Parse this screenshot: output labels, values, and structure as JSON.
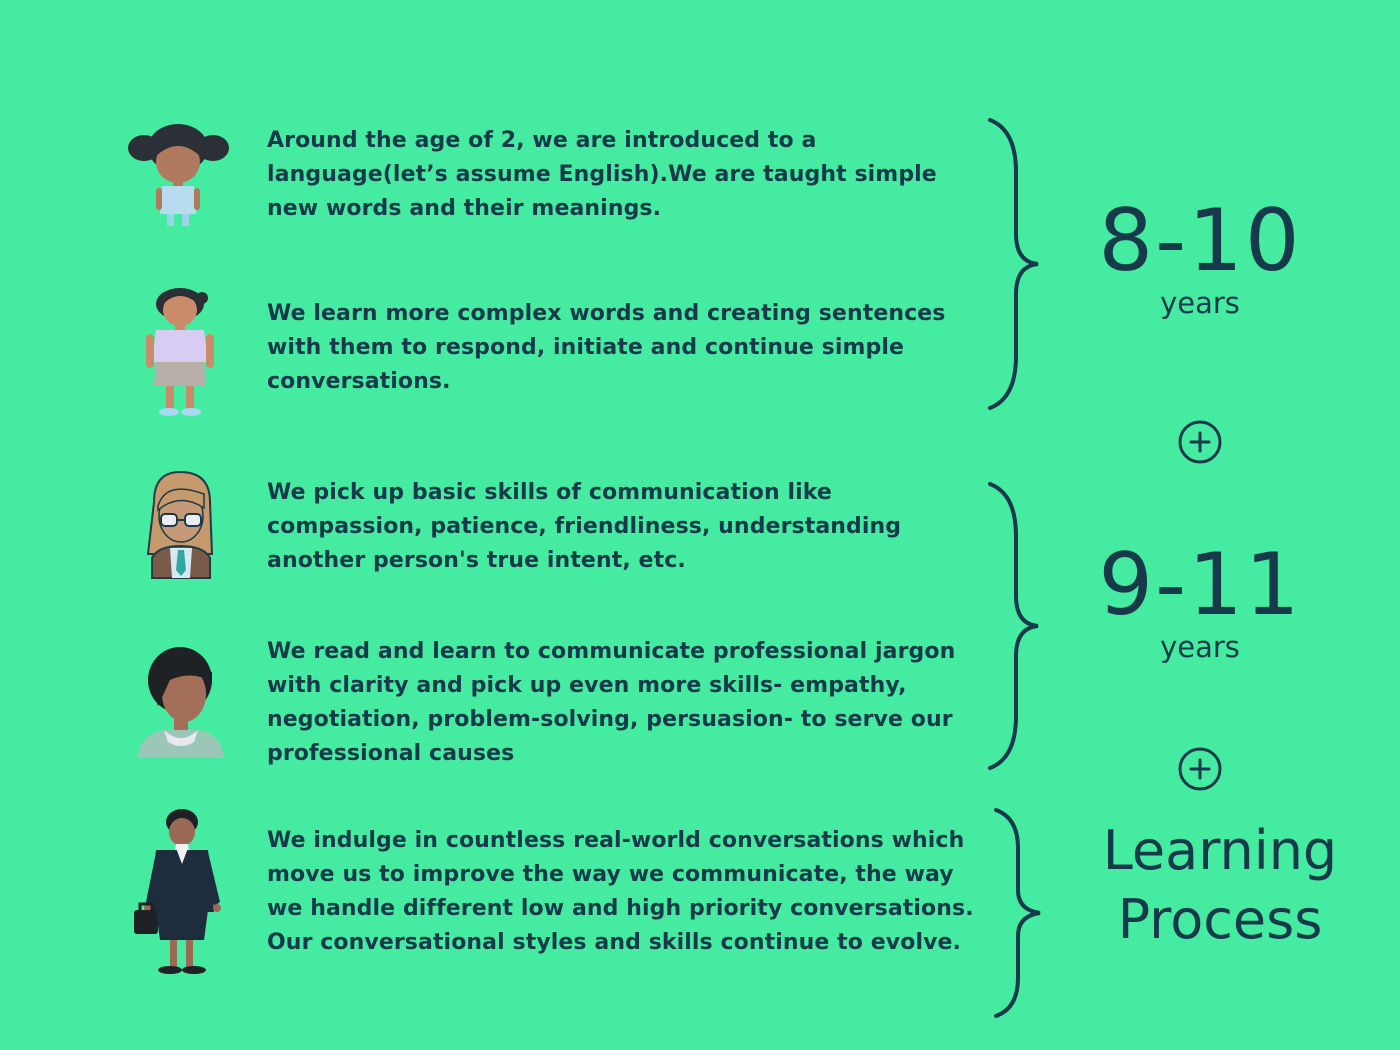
{
  "stages": [
    {
      "id": "toddler",
      "figure_icon": "toddler-girl-icon",
      "text": "Around the age of 2, we are introduced to a language(let’s assume English).We are taught simple new words and their meanings."
    },
    {
      "id": "child",
      "figure_icon": "child-girl-icon",
      "text": "We learn more complex words and creating sentences with them to respond, initiate and continue simple conversations."
    },
    {
      "id": "teen",
      "figure_icon": "teen-girl-icon",
      "text": "We pick up basic skills of communication like compassion, patience, friendliness, understanding another person's true intent, etc."
    },
    {
      "id": "young-adult",
      "figure_icon": "young-woman-icon",
      "text": "We read and learn to communicate professional jargon with clarity and pick up even more skills- empathy, negotiation, problem-solving, persuasion- to serve our professional causes"
    },
    {
      "id": "professional",
      "figure_icon": "businesswoman-icon",
      "text": "We indulge in countless real-world conversations which move us to improve the way we communicate, the way we handle different low and high priority conversations. Our conversational styles and skills continue to evolve."
    }
  ],
  "groups": [
    {
      "range": "8-10",
      "unit": "years"
    },
    {
      "range": "9-11",
      "unit": "years"
    },
    {
      "line1": "Learning",
      "line2": "Process"
    }
  ],
  "icons": {
    "brace": "curly-brace-icon",
    "plus": "plus-circle-icon"
  },
  "colors": {
    "background": "#46eba2",
    "ink": "#173a4a"
  }
}
